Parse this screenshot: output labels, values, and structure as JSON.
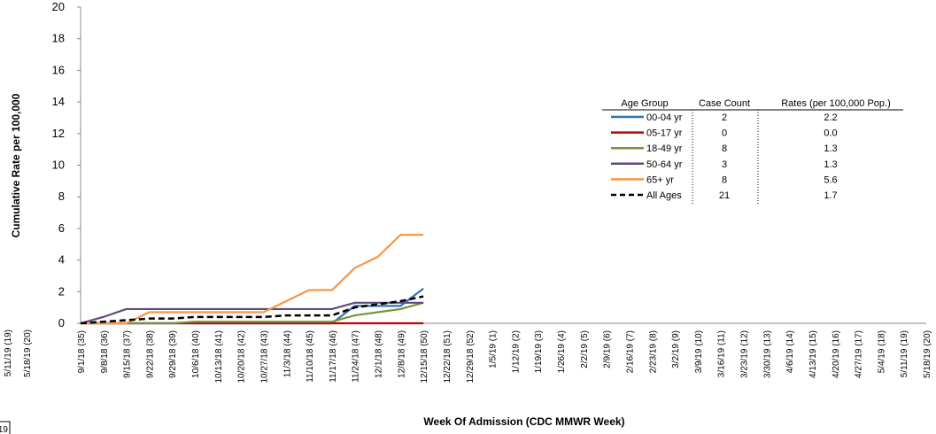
{
  "chart_data": {
    "type": "line",
    "y_label": "Cumulative Rate per 100,000",
    "x_label": "Week Of Admission  (CDC MMWR Week)",
    "ylim": [
      0,
      20
    ],
    "yticks": [
      0,
      2,
      4,
      6,
      8,
      10,
      12,
      14,
      16,
      18,
      20
    ],
    "grid": false,
    "categories": [
      "9/1/18 (35)",
      "9/8/18 (36)",
      "9/15/18 (37)",
      "9/22/18 (38)",
      "9/29/18 (39)",
      "10/6/18 (40)",
      "10/13/18 (41)",
      "10/20/18 (42)",
      "10/27/18 (43)",
      "11/3/18 (44)",
      "11/10/18 (45)",
      "11/17/18 (46)",
      "11/24/18 (47)",
      "12/1/18 (48)",
      "12/8/18 (49)",
      "12/15/18 (50)",
      "12/22/18 (51)",
      "12/29/18 (52)",
      "1/5/19 (1)",
      "1/12/19 (2)",
      "1/19/19 (3)",
      "1/26/19 (4)",
      "2/2/19 (5)",
      "2/9/19 (6)",
      "2/16/19 (7)",
      "2/23/19 (8)",
      "3/2/19 (9)",
      "3/9/19 (10)",
      "3/16/19 (11)",
      "3/23/19 (12)",
      "3/30/19 (13)",
      "4/6/19 (14)",
      "4/13/19 (15)",
      "4/20/19 (16)",
      "4/27/19 (17)",
      "5/4/19 (18)",
      "5/11/19 (19)",
      "5/18/19 (20)"
    ],
    "series": [
      {
        "name": "00-04 yr",
        "color": "#2e75b6",
        "dashed": false,
        "values": [
          0,
          0,
          0,
          0,
          0,
          0,
          0,
          0,
          0,
          0,
          0,
          0,
          1.1,
          1.1,
          1.1,
          2.2,
          null,
          null,
          null,
          null,
          null,
          null,
          null,
          null,
          null,
          null,
          null,
          null,
          null,
          null,
          null,
          null,
          null,
          null,
          null,
          null,
          null,
          null
        ]
      },
      {
        "name": "05-17 yr",
        "color": "#c00000",
        "dashed": false,
        "values": [
          0,
          0,
          0,
          0,
          0,
          0,
          0,
          0,
          0,
          0,
          0,
          0,
          0,
          0,
          0,
          0,
          null,
          null,
          null,
          null,
          null,
          null,
          null,
          null,
          null,
          null,
          null,
          null,
          null,
          null,
          null,
          null,
          null,
          null,
          null,
          null,
          null,
          null
        ]
      },
      {
        "name": "18-49 yr",
        "color": "#77933c",
        "dashed": false,
        "values": [
          0,
          0,
          0,
          0,
          0,
          0.1,
          0.1,
          0.1,
          0.1,
          0.1,
          0.1,
          0.1,
          0.5,
          0.7,
          0.9,
          1.3,
          null,
          null,
          null,
          null,
          null,
          null,
          null,
          null,
          null,
          null,
          null,
          null,
          null,
          null,
          null,
          null,
          null,
          null,
          null,
          null,
          null,
          null
        ]
      },
      {
        "name": "50-64 yr",
        "color": "#604a7b",
        "dashed": false,
        "values": [
          0,
          0.4,
          0.9,
          0.9,
          0.9,
          0.9,
          0.9,
          0.9,
          0.9,
          0.9,
          0.9,
          0.9,
          1.3,
          1.3,
          1.3,
          1.3,
          null,
          null,
          null,
          null,
          null,
          null,
          null,
          null,
          null,
          null,
          null,
          null,
          null,
          null,
          null,
          null,
          null,
          null,
          null,
          null,
          null,
          null
        ]
      },
      {
        "name": "65+ yr",
        "color": "#f79646",
        "dashed": false,
        "values": [
          0,
          0,
          0,
          0.7,
          0.7,
          0.7,
          0.7,
          0.7,
          0.7,
          1.4,
          2.1,
          2.1,
          3.5,
          4.2,
          5.6,
          5.6,
          null,
          null,
          null,
          null,
          null,
          null,
          null,
          null,
          null,
          null,
          null,
          null,
          null,
          null,
          null,
          null,
          null,
          null,
          null,
          null,
          null,
          null
        ]
      },
      {
        "name": "All Ages",
        "color": "#000000",
        "dashed": true,
        "values": [
          0,
          0.1,
          0.2,
          0.3,
          0.3,
          0.4,
          0.4,
          0.4,
          0.4,
          0.5,
          0.5,
          0.5,
          1.0,
          1.2,
          1.4,
          1.7,
          null,
          null,
          null,
          null,
          null,
          null,
          null,
          null,
          null,
          null,
          null,
          null,
          null,
          null,
          null,
          null,
          null,
          null,
          null,
          null,
          null,
          null
        ]
      }
    ],
    "table": {
      "headers": [
        "Age Group",
        "Case Count",
        "Rates (per 100,000 Pop.)"
      ],
      "case_counts": [
        2,
        0,
        8,
        3,
        8,
        21
      ],
      "rates": [
        2.2,
        0,
        1.3,
        1.3,
        5.6,
        1.7
      ],
      "rate_labels": [
        "2.2",
        "0.0",
        "1.3",
        "1.3",
        "5.6",
        "1.7"
      ]
    }
  },
  "fragment": {
    "x_labels": [
      "5/11/19 (19)",
      "5/18/19 (20)"
    ],
    "box_text": "19"
  }
}
